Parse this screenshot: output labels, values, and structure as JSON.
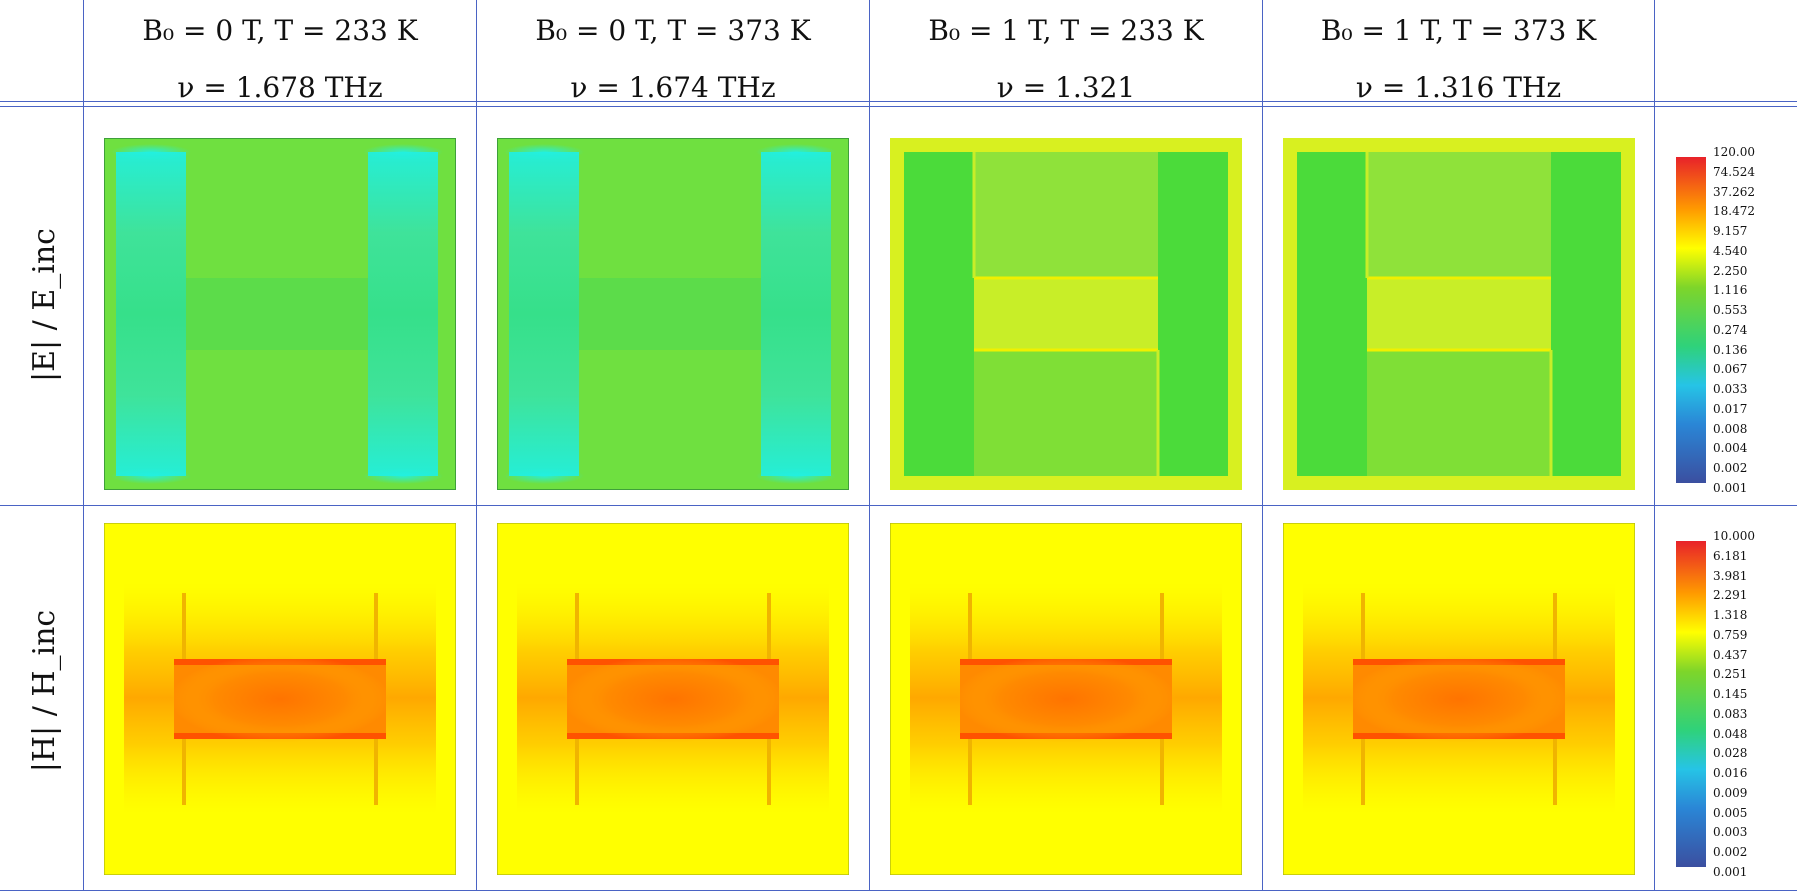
{
  "columns": [
    {
      "line1": "B₀ = 0 T, T = 233 K",
      "line2": "ν = 1.678 THz"
    },
    {
      "line1": "B₀ = 0 T, T = 373 K",
      "line2": "ν = 1.674 THz"
    },
    {
      "line1": "B₀ = 1 T, T = 233 K",
      "line2": "ν = 1.321"
    },
    {
      "line1": "B₀ = 1 T, T = 373 K",
      "line2": "ν = 1.316 THz"
    }
  ],
  "rows": [
    {
      "label": "|E| / E_inc"
    },
    {
      "label": "|H| / H_inc"
    }
  ],
  "colorbars": [
    {
      "ticks": [
        "120.00",
        "74.524",
        "37.262",
        "18.472",
        "9.157",
        "4.540",
        "2.250",
        "1.116",
        "0.553",
        "0.274",
        "0.136",
        "0.067",
        "0.033",
        "0.017",
        "0.008",
        "0.004",
        "0.002",
        "0.001"
      ]
    },
    {
      "ticks": [
        "10.000",
        "6.181",
        "3.981",
        "2.291",
        "1.318",
        "0.759",
        "0.437",
        "0.251",
        "0.145",
        "0.083",
        "0.048",
        "0.028",
        "0.016",
        "0.009",
        "0.005",
        "0.003",
        "0.002",
        "0.001"
      ]
    }
  ],
  "colors": {
    "grid_line": "#4a63c4"
  }
}
